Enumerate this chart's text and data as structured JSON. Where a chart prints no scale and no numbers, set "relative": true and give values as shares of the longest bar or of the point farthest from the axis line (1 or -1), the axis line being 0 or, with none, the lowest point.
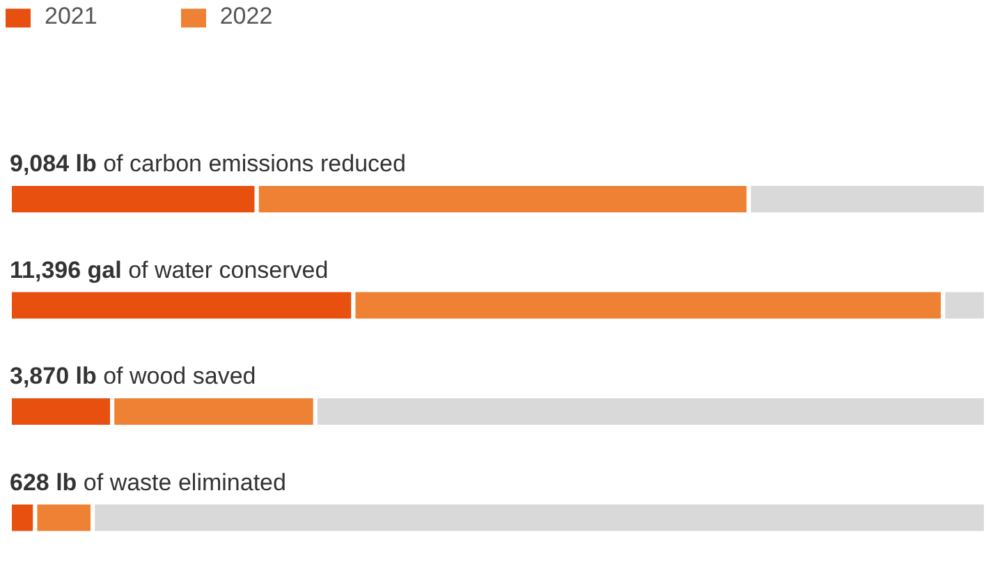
{
  "chart_data": {
    "type": "bar",
    "orientation": "horizontal",
    "stacked": true,
    "relative": true,
    "legend": "top left",
    "categories": [
      "9,084 lb of carbon emissions reduced",
      "11,396 gal of water conserved",
      "3,870 lb of wood saved",
      "628 lb of waste eliminated"
    ],
    "series": [
      {
        "name": "2021",
        "color": "#e8500f",
        "values": [
          0.253,
          0.352,
          0.105,
          0.026
        ]
      },
      {
        "name": "2022",
        "color": "#ef8134",
        "values": [
          0.504,
          0.604,
          0.208,
          0.059
        ]
      },
      {
        "color": "#d9d9d9",
        "values": [
          0.243,
          0.044,
          0.687,
          0.915
        ]
      }
    ]
  }
}
